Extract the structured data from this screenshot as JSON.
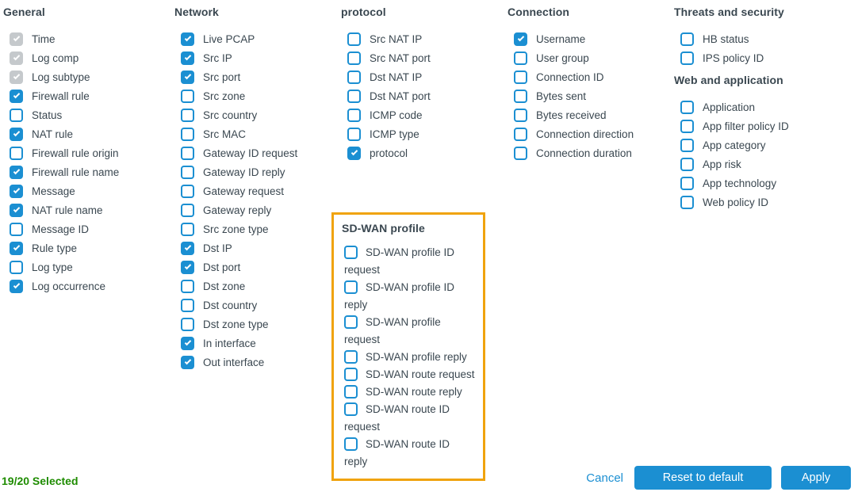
{
  "colors": {
    "accent_blue": "#1b8fd2",
    "disabled_gray": "#c5c9cc",
    "highlight_orange": "#f0a30d",
    "selected_green": "#1e8c00",
    "text": "#3a4750"
  },
  "columns": [
    {
      "sections": [
        {
          "title": "General",
          "items": [
            {
              "label": "Time",
              "state": "disabled"
            },
            {
              "label": "Log comp",
              "state": "disabled"
            },
            {
              "label": "Log subtype",
              "state": "disabled"
            },
            {
              "label": "Firewall rule",
              "state": "checked"
            },
            {
              "label": "Status",
              "state": "unchecked"
            },
            {
              "label": "NAT rule",
              "state": "checked"
            },
            {
              "label": "Firewall rule origin",
              "state": "unchecked"
            },
            {
              "label": "Firewall rule name",
              "state": "checked"
            },
            {
              "label": "Message",
              "state": "checked"
            },
            {
              "label": "NAT rule name",
              "state": "checked"
            },
            {
              "label": "Message ID",
              "state": "unchecked"
            },
            {
              "label": "Rule type",
              "state": "checked"
            },
            {
              "label": "Log type",
              "state": "unchecked"
            },
            {
              "label": "Log occurrence",
              "state": "checked"
            }
          ]
        }
      ]
    },
    {
      "sections": [
        {
          "title": "Network",
          "items": [
            {
              "label": "Live PCAP",
              "state": "checked"
            },
            {
              "label": "Src IP",
              "state": "checked"
            },
            {
              "label": "Src port",
              "state": "checked"
            },
            {
              "label": "Src zone",
              "state": "unchecked"
            },
            {
              "label": "Src country",
              "state": "unchecked"
            },
            {
              "label": "Src MAC",
              "state": "unchecked"
            },
            {
              "label": "Gateway ID request",
              "state": "unchecked"
            },
            {
              "label": "Gateway ID reply",
              "state": "unchecked"
            },
            {
              "label": "Gateway request",
              "state": "unchecked"
            },
            {
              "label": "Gateway reply",
              "state": "unchecked"
            },
            {
              "label": "Src zone type",
              "state": "unchecked"
            },
            {
              "label": "Dst IP",
              "state": "checked"
            },
            {
              "label": "Dst port",
              "state": "checked"
            },
            {
              "label": "Dst zone",
              "state": "unchecked"
            },
            {
              "label": "Dst country",
              "state": "unchecked"
            },
            {
              "label": "Dst zone type",
              "state": "unchecked"
            },
            {
              "label": "In interface",
              "state": "checked"
            },
            {
              "label": "Out interface",
              "state": "checked"
            }
          ]
        }
      ]
    },
    {
      "sections": [
        {
          "title": "protocol",
          "items": [
            {
              "label": "Src NAT IP",
              "state": "unchecked"
            },
            {
              "label": "Src NAT port",
              "state": "unchecked"
            },
            {
              "label": "Dst NAT IP",
              "state": "unchecked"
            },
            {
              "label": "Dst NAT port",
              "state": "unchecked"
            },
            {
              "label": "ICMP code",
              "state": "unchecked"
            },
            {
              "label": "ICMP type",
              "state": "unchecked"
            },
            {
              "label": "protocol",
              "state": "checked"
            }
          ]
        },
        {
          "title": "SD-WAN profile",
          "highlight": true,
          "wrap": true,
          "items": [
            {
              "label": "SD-WAN profile ID request",
              "state": "unchecked"
            },
            {
              "label": "SD-WAN profile ID reply",
              "state": "unchecked"
            },
            {
              "label": "SD-WAN profile request",
              "state": "unchecked"
            },
            {
              "label": "SD-WAN profile reply",
              "state": "unchecked"
            },
            {
              "label": "SD-WAN route request",
              "state": "unchecked"
            },
            {
              "label": "SD-WAN route reply",
              "state": "unchecked"
            },
            {
              "label": "SD-WAN route ID request",
              "state": "unchecked"
            },
            {
              "label": "SD-WAN route ID reply",
              "state": "unchecked"
            }
          ]
        }
      ]
    },
    {
      "sections": [
        {
          "title": "Connection",
          "items": [
            {
              "label": "Username",
              "state": "checked"
            },
            {
              "label": "User group",
              "state": "unchecked"
            },
            {
              "label": "Connection ID",
              "state": "unchecked"
            },
            {
              "label": "Bytes sent",
              "state": "unchecked"
            },
            {
              "label": "Bytes received",
              "state": "unchecked"
            },
            {
              "label": "Connection direction",
              "state": "unchecked"
            },
            {
              "label": "Connection duration",
              "state": "unchecked"
            }
          ]
        }
      ]
    },
    {
      "sections": [
        {
          "title": "Threats and security",
          "items": [
            {
              "label": "HB status",
              "state": "unchecked"
            },
            {
              "label": "IPS policy ID",
              "state": "unchecked"
            }
          ]
        },
        {
          "title": "Web and application",
          "items": [
            {
              "label": "Application",
              "state": "unchecked"
            },
            {
              "label": "App filter policy ID",
              "state": "unchecked"
            },
            {
              "label": "App category",
              "state": "unchecked"
            },
            {
              "label": "App risk",
              "state": "unchecked"
            },
            {
              "label": "App technology",
              "state": "unchecked"
            },
            {
              "label": "Web policy ID",
              "state": "unchecked"
            }
          ]
        }
      ]
    }
  ],
  "footer": {
    "selected_count": "19/20 Selected",
    "cancel_label": "Cancel",
    "reset_label": "Reset to default",
    "apply_label": "Apply"
  }
}
